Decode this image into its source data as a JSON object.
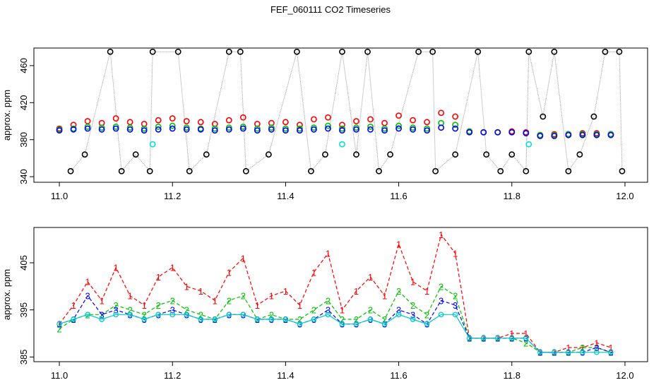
{
  "title": "FEF_060111  CO2 Timeseries",
  "chart_data": [
    {
      "type": "scatter",
      "y_label": "approx. ppm",
      "xlim": [
        10.955,
        12.04
      ],
      "ylim": [
        334,
        479
      ],
      "xticks": [
        {
          "value": 11,
          "label": "11.0"
        },
        11.2,
        11.4,
        11.6,
        11.8,
        {
          "value": 12,
          "label": "12.0"
        }
      ],
      "yticks": [
        340,
        380,
        420,
        460
      ],
      "x": [
        11.0,
        11.025,
        11.05,
        11.075,
        11.1,
        11.125,
        11.15,
        11.175,
        11.2,
        11.225,
        11.25,
        11.275,
        11.3,
        11.325,
        11.35,
        11.375,
        11.4,
        11.425,
        11.45,
        11.475,
        11.5,
        11.525,
        11.55,
        11.575,
        11.6,
        11.625,
        11.65,
        11.675,
        11.7,
        11.725,
        11.75,
        11.775,
        11.8,
        11.825,
        11.85,
        11.875,
        11.9,
        11.925,
        11.95,
        11.975
      ],
      "series": [
        {
          "color": "#000000",
          "line_color": "#9a9a9a",
          "x": [
            11.02,
            11.045,
            11.09,
            11.11,
            11.135,
            11.16,
            11.165,
            11.21,
            11.23,
            11.26,
            11.3,
            11.32,
            11.33,
            11.37,
            11.42,
            11.445,
            11.47,
            11.5,
            11.525,
            11.545,
            11.565,
            11.585,
            11.635,
            11.66,
            11.665,
            11.7,
            11.74,
            11.755,
            11.78,
            11.8,
            11.825,
            11.83,
            11.855,
            11.875,
            11.9,
            11.92,
            11.945,
            11.965,
            11.99,
            11.995
          ],
          "values": [
            346,
            364,
            475,
            346,
            364,
            346,
            475,
            475,
            346,
            364,
            475,
            475,
            346,
            364,
            475,
            346,
            364,
            475,
            364,
            475,
            346,
            364,
            475,
            475,
            346,
            364,
            475,
            364,
            346,
            364,
            346,
            475,
            405,
            475,
            346,
            364,
            405,
            475,
            475,
            346
          ]
        },
        {
          "color": "#ff0000",
          "values": [
            392,
            396,
            400,
            398,
            403,
            399,
            397,
            401,
            403,
            400,
            399,
            397,
            401,
            404,
            397,
            398,
            399,
            396,
            402,
            404,
            396,
            400,
            402,
            398,
            406,
            401,
            399,
            409,
            405,
            389,
            388,
            388,
            389,
            388,
            385,
            386,
            386,
            387,
            387,
            386
          ]
        },
        {
          "color": "#00c000",
          "values": [
            391,
            392,
            394,
            393,
            394,
            393,
            392,
            394,
            395,
            393,
            392,
            392,
            393,
            394,
            392,
            393,
            392,
            392,
            393,
            395,
            392,
            393,
            394,
            392,
            395,
            393,
            392,
            398,
            396,
            389,
            388,
            388,
            388,
            387,
            385,
            385,
            386,
            386,
            386,
            386
          ]
        },
        {
          "color": "#0000ff",
          "values": [
            390,
            391,
            392,
            391,
            392,
            391,
            390,
            391,
            392,
            391,
            391,
            390,
            391,
            392,
            390,
            391,
            390,
            390,
            391,
            392,
            390,
            391,
            391,
            390,
            392,
            391,
            390,
            393,
            392,
            388,
            388,
            388,
            388,
            387,
            384,
            384,
            385,
            385,
            385,
            385
          ]
        },
        {
          "color": "#00e0e0",
          "x": [
            11.165,
            11.5,
            11.83
          ],
          "values": [
            375,
            375,
            375
          ]
        }
      ]
    },
    {
      "type": "line",
      "y_label": "approx. ppm",
      "xlim": [
        10.955,
        12.04
      ],
      "ylim": [
        384,
        412.5
      ],
      "xticks": [
        {
          "value": 11,
          "label": "11.0"
        },
        11.2,
        11.4,
        11.6,
        11.8,
        {
          "value": 12,
          "label": "12.0"
        }
      ],
      "yticks": [
        385,
        395,
        405
      ],
      "x": [
        11.0,
        11.025,
        11.05,
        11.075,
        11.1,
        11.125,
        11.15,
        11.175,
        11.2,
        11.225,
        11.25,
        11.275,
        11.3,
        11.325,
        11.35,
        11.375,
        11.4,
        11.425,
        11.45,
        11.475,
        11.5,
        11.525,
        11.55,
        11.575,
        11.6,
        11.625,
        11.65,
        11.675,
        11.7,
        11.725,
        11.75,
        11.775,
        11.8,
        11.825,
        11.85,
        11.875,
        11.9,
        11.925,
        11.95,
        11.975
      ],
      "series": [
        {
          "color": "#ff0000",
          "marker": "1",
          "values": [
            392,
            396,
            401,
            397,
            404,
            398,
            396,
            402,
            404,
            400,
            399,
            397,
            403,
            406,
            396,
            398,
            399,
            396,
            403,
            407,
            395,
            399,
            402,
            398,
            409,
            401,
            399,
            411,
            407,
            389,
            389,
            389,
            390,
            390,
            386,
            386,
            387,
            387,
            388,
            387
          ]
        },
        {
          "color": "#00c000",
          "marker": "2",
          "values": [
            391,
            393,
            394,
            394,
            396,
            395,
            394,
            396,
            397,
            395,
            394,
            393,
            397,
            398,
            393,
            394,
            393,
            393,
            395,
            397,
            393,
            393,
            395,
            393,
            399,
            396,
            394,
            400,
            398,
            389,
            389,
            389,
            389,
            388,
            386,
            386,
            386,
            387,
            387,
            386
          ]
        },
        {
          "color": "#0000ff",
          "marker": "3",
          "values": [
            392,
            393,
            398,
            394,
            395,
            394,
            393,
            394,
            395,
            394,
            393,
            393,
            394,
            394,
            393,
            393,
            393,
            392,
            393,
            395,
            392,
            392,
            393,
            392,
            395,
            394,
            392,
            397,
            396,
            389,
            389,
            389,
            389,
            389,
            386,
            386,
            386,
            386,
            387,
            386
          ]
        },
        {
          "color": "#00c8c8",
          "values": [
            392,
            393,
            394,
            393,
            394,
            394,
            393,
            394,
            394,
            394,
            393,
            393,
            394,
            394,
            393,
            393,
            393,
            392,
            393,
            394,
            392,
            392,
            393,
            392,
            394,
            393,
            392,
            394,
            394,
            389,
            389,
            389,
            389,
            389,
            386,
            386,
            386,
            386,
            386,
            386
          ]
        }
      ]
    }
  ]
}
